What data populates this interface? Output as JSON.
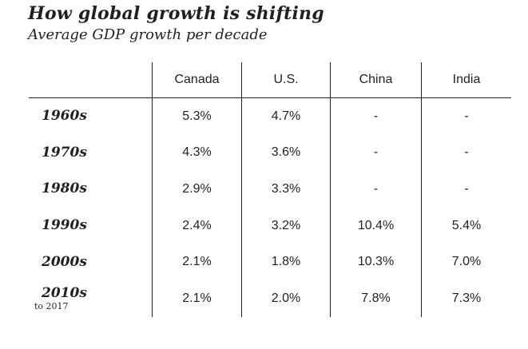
{
  "title": "How global growth is shifting",
  "subtitle": "Average GDP growth per decade",
  "colors": {
    "text": "#231f20",
    "line": "#231f20",
    "background": "#ffffff"
  },
  "table": {
    "columns": [
      "Canada",
      "U.S.",
      "China",
      "India"
    ],
    "rows": [
      {
        "label": "1960s",
        "sublabel": "",
        "values": [
          "5.3%",
          "4.7%",
          "-",
          "-"
        ]
      },
      {
        "label": "1970s",
        "sublabel": "",
        "values": [
          "4.3%",
          "3.6%",
          "-",
          "-"
        ]
      },
      {
        "label": "1980s",
        "sublabel": "",
        "values": [
          "2.9%",
          "3.3%",
          "-",
          "-"
        ]
      },
      {
        "label": "1990s",
        "sublabel": "",
        "values": [
          "2.4%",
          "3.2%",
          "10.4%",
          "5.4%"
        ]
      },
      {
        "label": "2000s",
        "sublabel": "",
        "values": [
          "2.1%",
          "1.8%",
          "10.3%",
          "7.0%"
        ]
      },
      {
        "label": "2010s",
        "sublabel": "to 2017",
        "values": [
          "2.1%",
          "2.0%",
          "7.8%",
          "7.3%"
        ]
      }
    ]
  },
  "chart_data": {
    "type": "table",
    "title": "How global growth is shifting",
    "subtitle": "Average GDP growth per decade",
    "unit": "percent average GDP growth",
    "categories": [
      "1960s",
      "1970s",
      "1980s",
      "1990s",
      "2000s",
      "2010s to 2017"
    ],
    "series": [
      {
        "name": "Canada",
        "values": [
          5.3,
          4.3,
          2.9,
          2.4,
          2.1,
          2.1
        ]
      },
      {
        "name": "U.S.",
        "values": [
          4.7,
          3.6,
          3.3,
          3.2,
          1.8,
          2.0
        ]
      },
      {
        "name": "China",
        "values": [
          null,
          null,
          null,
          10.4,
          10.3,
          7.8
        ]
      },
      {
        "name": "India",
        "values": [
          null,
          null,
          null,
          5.4,
          7.0,
          7.3
        ]
      }
    ]
  }
}
